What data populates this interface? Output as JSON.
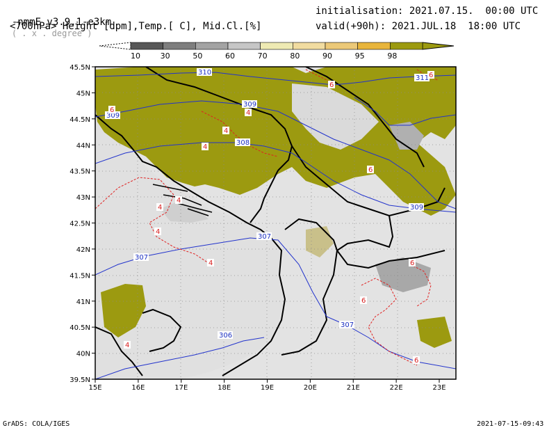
{
  "header": {
    "model": "-nmmE_v3.9.1-e3km",
    "units_note": "( . x . degree )",
    "fields": "<700hPa> Height [dpm],Temp.[ C], Mid.Cl.[%]",
    "init": "initialisation: 2021.07.15.  00:00 UTC",
    "valid": "valid(+90h): 2021.JUL.18  18:00 UTC"
  },
  "colorbar": {
    "labels": [
      "10",
      "30",
      "50",
      "60",
      "70",
      "80",
      "90",
      "95",
      "98"
    ],
    "colors": [
      "#575757",
      "#7e7e7e",
      "#a3a3a3",
      "#c6c6c6",
      "#eeeab3",
      "#f1dca0",
      "#ecc978",
      "#e8b53c",
      "#9c9a10"
    ]
  },
  "map": {
    "lat_labels": [
      "45.5N",
      "45N",
      "44.5N",
      "44N",
      "43.5N",
      "43N",
      "42.5N",
      "42N",
      "41.5N",
      "41N",
      "40.5N",
      "40N",
      "39.5N"
    ],
    "lon_labels": [
      "15E",
      "16E",
      "17E",
      "18E",
      "19E",
      "20E",
      "21E",
      "22E",
      "23E"
    ],
    "height_labels": [
      "310",
      "309",
      "309",
      "308",
      "307",
      "307",
      "307",
      "306",
      "309",
      "311"
    ],
    "temp_labels": [
      "4",
      "4",
      "4",
      "4",
      "4",
      "4",
      "4",
      "4",
      "6",
      "6",
      "6",
      "6",
      "6",
      "6",
      "6"
    ],
    "colors": {
      "land": "#e3e3e3",
      "cloud_high": "#9c9a10",
      "height_contour": "#2233cc",
      "temp_contour": "#e02020"
    }
  },
  "footer": {
    "left": "GrADS: COLA/IGES",
    "right": "2021-07-15-09:43"
  }
}
